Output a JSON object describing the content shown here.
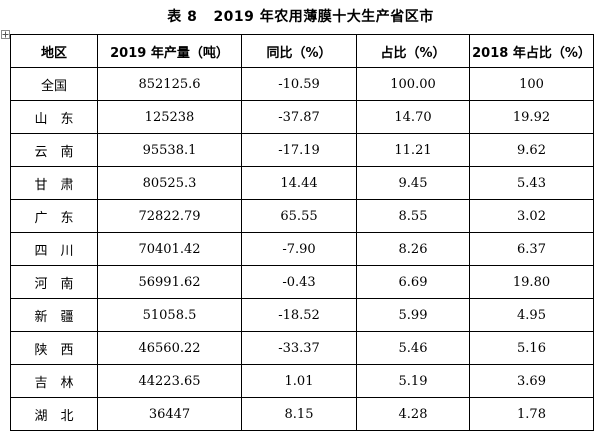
{
  "document": {
    "title": "表 8   2019 年农用薄膜十大生产省区市"
  },
  "table": {
    "headers": [
      "地区",
      "2019 年产量（吨）",
      "同比（%）",
      "占比（%）",
      "2018 年占比（%）"
    ],
    "rows": [
      {
        "region": "全国",
        "output_2019": "852125.6",
        "yoy": "-10.59",
        "share": "100.00",
        "share_2018": "100"
      },
      {
        "region": "山　东",
        "output_2019": "125238",
        "yoy": "-37.87",
        "share": "14.70",
        "share_2018": "19.92"
      },
      {
        "region": "云　南",
        "output_2019": "95538.1",
        "yoy": "-17.19",
        "share": "11.21",
        "share_2018": "9.62"
      },
      {
        "region": "甘　肃",
        "output_2019": "80525.3",
        "yoy": "14.44",
        "share": "9.45",
        "share_2018": "5.43"
      },
      {
        "region": "广　东",
        "output_2019": "72822.79",
        "yoy": "65.55",
        "share": "8.55",
        "share_2018": "3.02"
      },
      {
        "region": "四　川",
        "output_2019": "70401.42",
        "yoy": "-7.90",
        "share": "8.26",
        "share_2018": "6.37"
      },
      {
        "region": "河　南",
        "output_2019": "56991.62",
        "yoy": "-0.43",
        "share": "6.69",
        "share_2018": "19.80"
      },
      {
        "region": "新　疆",
        "output_2019": "51058.5",
        "yoy": "-18.52",
        "share": "5.99",
        "share_2018": "4.95"
      },
      {
        "region": "陕　西",
        "output_2019": "46560.22",
        "yoy": "-33.37",
        "share": "5.46",
        "share_2018": "5.16"
      },
      {
        "region": "吉　林",
        "output_2019": "44223.65",
        "yoy": "1.01",
        "share": "5.19",
        "share_2018": "3.69"
      },
      {
        "region": "湖　北",
        "output_2019": "36447",
        "yoy": "8.15",
        "share": "4.28",
        "share_2018": "1.78"
      }
    ]
  },
  "icons": {
    "table_handle": "table-move-handle-icon"
  }
}
